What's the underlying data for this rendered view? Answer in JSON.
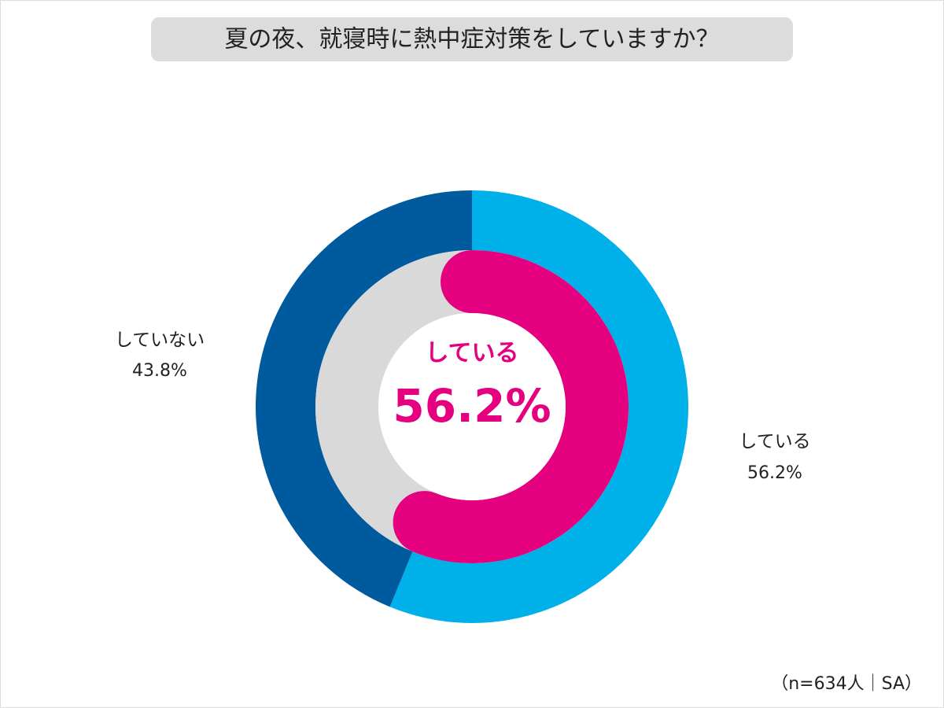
{
  "chart_data": {
    "type": "donut",
    "title": "夏の夜、就寝時に熱中症対策をしていますか？",
    "categories": [
      "している",
      "していない"
    ],
    "values": [
      56.2,
      43.8
    ],
    "value_labels": [
      "56.2%",
      "43.8%"
    ],
    "colors": [
      "#00b0e8",
      "#005a9e"
    ],
    "highlight_color": "#e4007f",
    "track_color": "#d9d9d9",
    "note": "（n=634人｜SA）"
  }
}
